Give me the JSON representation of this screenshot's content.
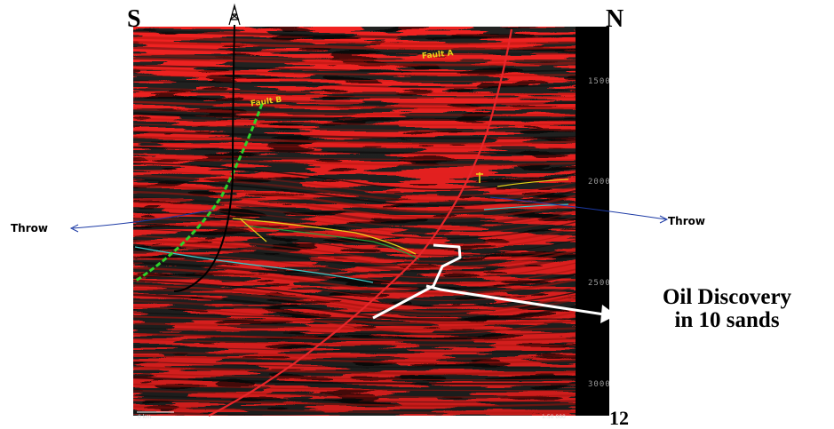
{
  "directions": {
    "south": "S",
    "north": "N"
  },
  "faults": {
    "a": "Fault A",
    "b": "Fault B"
  },
  "throw_left": "Throw",
  "throw_right": "Throw",
  "discovery": {
    "line1": "Oil Discovery",
    "line2": "in 10 sands"
  },
  "depth_ticks": [
    "1500",
    "2000",
    "2500",
    "3000"
  ],
  "bottom_number": "12",
  "corner_left": "0 km",
  "corner_right": "1:50 000",
  "colors": {
    "seismic_red": "#b3150f",
    "seismic_black": "#0a0a0a",
    "fault_a": "#e8262a",
    "fault_b": "#2fd12a",
    "horizon_yellow": "#e8d21a",
    "horizon_cyan": "#3ec9c9"
  },
  "icons": {
    "well": "derrick-icon"
  }
}
